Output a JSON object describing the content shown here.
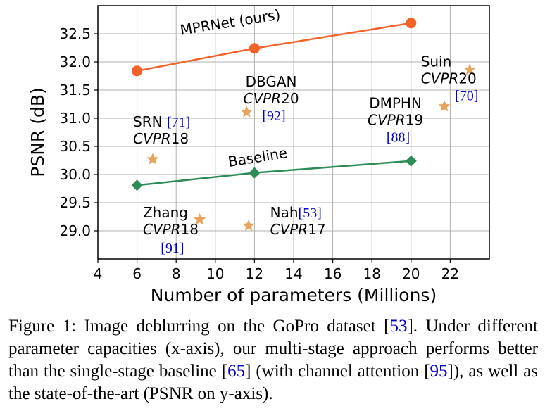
{
  "chart_data": {
    "type": "scatter",
    "xlabel": "Number of parameters (Millions)",
    "ylabel": "PSNR (dB)",
    "xlim": [
      4,
      24
    ],
    "ylim": [
      28.5,
      33.0
    ],
    "xticks": [
      4,
      6,
      8,
      10,
      12,
      14,
      16,
      18,
      20,
      22
    ],
    "yticks": [
      29.0,
      29.5,
      30.0,
      30.5,
      31.0,
      31.5,
      32.0,
      32.5
    ],
    "ytick_labels": [
      "29.0",
      "29.5",
      "30.0",
      "30.5",
      "31.0",
      "31.5",
      "32.0",
      "32.5"
    ],
    "grid": true,
    "series": [
      {
        "name": "MPRNet (ours)",
        "marker": "circle",
        "color": "#f4622a",
        "x": [
          6,
          12,
          20
        ],
        "y": [
          31.84,
          32.24,
          32.69
        ]
      },
      {
        "name": "Baseline",
        "marker": "diamond",
        "color": "#2e8b57",
        "x": [
          6,
          12,
          20
        ],
        "y": [
          29.81,
          30.03,
          30.24
        ]
      }
    ],
    "series_labels": [
      {
        "text": "MPRNet (ours)",
        "x": 10.8,
        "y": 32.62,
        "rotate": -9
      },
      {
        "text": "Baseline",
        "x": 12.2,
        "y": 30.22,
        "rotate": -9
      }
    ],
    "others": [
      {
        "name": "SRN",
        "venue": "CVPR",
        "year": "18",
        "cite": "71",
        "x": 6.8,
        "y": 30.27,
        "label_x": 5.8,
        "label_y": 30.85
      },
      {
        "name": "DBGAN",
        "venue": "CVPR",
        "year": "20",
        "cite": "92",
        "x": 11.6,
        "y": 31.11,
        "label_x": 12.85,
        "label_y": 31.56
      },
      {
        "name": "Zhang",
        "venue": "CVPR",
        "year": "18",
        "cite": "91",
        "x": 9.2,
        "y": 29.2,
        "label_x": 6.3,
        "label_y": 29.24
      },
      {
        "name": "Nah",
        "venue": "CVPR",
        "year": "17",
        "cite": "53",
        "x": 11.7,
        "y": 29.09,
        "label_x": 12.8,
        "label_y": 29.24
      },
      {
        "name": "DMPHN",
        "venue": "CVPR",
        "year": "19",
        "cite": "88",
        "x": 21.7,
        "y": 31.21,
        "label_x": 19.2,
        "label_y": 31.18
      },
      {
        "name": "Suin",
        "venue": "CVPR",
        "year": "20",
        "cite": "70",
        "x": 23.0,
        "y": 31.86,
        "label_x": 20.5,
        "label_y": 31.92
      }
    ],
    "star_color": "#e8a45a"
  },
  "caption": {
    "prefix": "Figure 1:",
    "t1": " Image deblurring on the GoPro dataset [",
    "r1": "53",
    "t2": "].  Under different parameter capacities (x-axis), our multi-stage approach performs better than the single-stage baseline [",
    "r2": "65",
    "t3": "] (with channel attention [",
    "r3": "95",
    "t4": "]), as well as the state-of-the-art (PSNR on y-axis)."
  }
}
